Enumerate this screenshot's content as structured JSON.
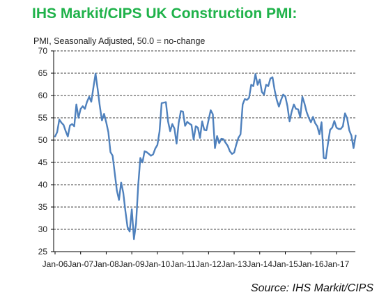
{
  "title": "IHS Markit/CIPS UK Construction PMI:",
  "subtitle": "PMI, Seasonally Adjusted, 50.0 = no-change",
  "source": "Source: IHS Markit/CIPS",
  "colors": {
    "title": "#1fb24a",
    "line": "#4f81bd",
    "grid": "#000000"
  },
  "chart_data": {
    "type": "line",
    "title": "IHS Markit/CIPS UK Construction PMI:",
    "subtitle": "PMI, Seasonally Adjusted, 50.0 = no-change",
    "xlabel": "",
    "ylabel": "",
    "ylim": [
      25,
      70
    ],
    "yticks": [
      25,
      30,
      35,
      40,
      45,
      50,
      55,
      60,
      65,
      70
    ],
    "xticks": [
      "Jan-06",
      "Jan-07",
      "Jan-08",
      "Jan-09",
      "Jan-10",
      "Jan-11",
      "Jan-12",
      "Jan-13",
      "Jan-14",
      "Jan-15",
      "Jan-16",
      "Jan-17"
    ],
    "grid": "horizontal dashed",
    "x_start": "Jan-06",
    "x_end": "Jun-17",
    "frequency": "monthly",
    "series": [
      {
        "values": [
          50.8,
          51.8,
          54.6,
          53.9,
          53.4,
          52.0,
          50.8,
          53.3,
          53.6,
          53.1,
          58.0,
          55.0,
          57.0,
          57.6,
          57.0,
          58.6,
          59.7,
          58.6,
          61.8,
          64.9,
          61.4,
          57.6,
          54.4,
          55.9,
          54.0,
          51.8,
          47.3,
          46.5,
          42.6,
          38.7,
          36.6,
          40.5,
          38.2,
          34.1,
          30.5,
          29.5,
          34.5,
          27.8,
          31.3,
          39.8,
          46.0,
          45.0,
          47.5,
          47.3,
          46.9,
          46.5,
          46.8,
          48.1,
          48.9,
          51.9,
          58.3,
          58.4,
          58.5,
          54.2,
          52.0,
          53.6,
          52.6,
          49.2,
          53.9,
          56.5,
          56.4,
          53.2,
          54.1,
          53.7,
          53.4,
          50.1,
          53.1,
          52.8,
          50.5,
          54.2,
          52.3,
          52.2,
          54.5,
          56.7,
          55.8,
          48.2,
          50.9,
          49.3,
          50.3,
          50.2,
          49.4,
          48.7,
          47.5,
          46.9,
          47.2,
          49.0,
          50.5,
          51.3,
          58.0,
          59.2,
          59.0,
          59.5,
          62.4,
          62.1,
          64.8,
          62.4,
          63.6,
          60.8,
          60.2,
          62.4,
          62.1,
          63.8,
          64.1,
          61.2,
          59.0,
          57.5,
          59.0,
          60.2,
          59.8,
          57.6,
          54.2,
          56.4,
          58.0,
          57.0,
          56.9,
          55.1,
          59.7,
          58.2,
          56.3,
          55.0,
          54.0,
          55.2,
          53.8,
          53.1,
          51.3,
          54.0,
          46.0,
          45.9,
          49.2,
          52.3,
          52.8,
          54.3,
          52.8,
          52.5,
          52.5,
          53.1,
          56.0,
          54.9,
          52.2,
          51.0,
          48.2,
          51.0
        ]
      }
    ]
  }
}
